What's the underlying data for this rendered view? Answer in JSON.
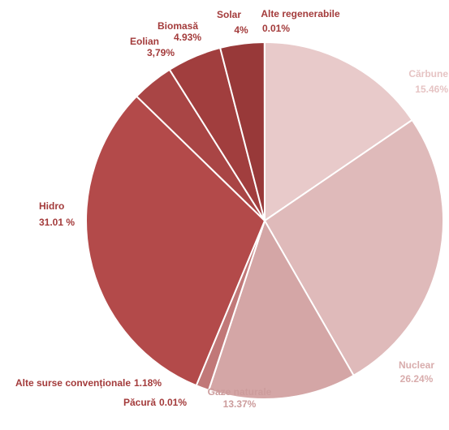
{
  "chart_data": {
    "type": "pie",
    "categories": [
      "Cărbune",
      "Nuclear",
      "Gaze naturale",
      "Păcură",
      "Alte surse convenționale",
      "Hidro",
      "Eolian",
      "Biomasă",
      "Solar",
      "Alte regenerabile"
    ],
    "values": [
      15.46,
      26.24,
      13.37,
      0.01,
      1.18,
      31.01,
      3.79,
      4.93,
      4,
      0.01
    ],
    "value_labels": [
      "15.46%",
      "26.24%",
      "13.37%",
      "0.01%",
      "1.18%",
      "31.01 %",
      "3,79%",
      "4.93%",
      "4%",
      "0.01%"
    ],
    "colors": [
      "#e8caca",
      "#dfbaba",
      "#d4a6a6",
      "#c98e8e",
      "#c17878",
      "#b34a4a",
      "#a94545",
      "#a13e3e",
      "#983939",
      "#8e3232"
    ]
  }
}
